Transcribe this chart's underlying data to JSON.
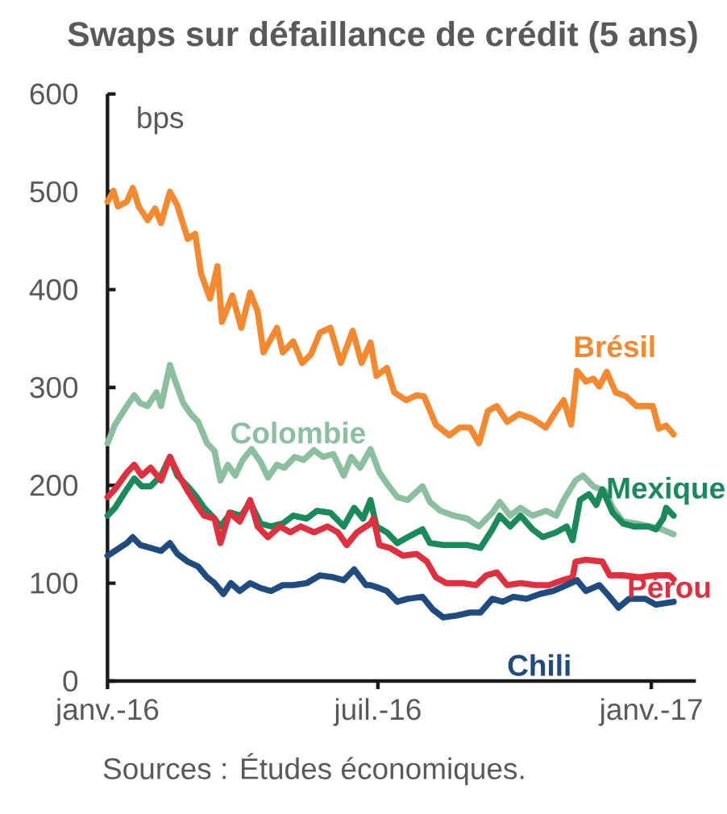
{
  "chart_data": {
    "type": "line",
    "title": "Swaps sur défaillance de crédit (5 ans)",
    "ylabel": "bps",
    "annotations": [
      "Sources : Études économiques."
    ],
    "xlim": [
      "2016-01-01",
      "2017-01-31"
    ],
    "ylim": [
      0,
      600
    ],
    "xticks": [
      {
        "value": "2016-01-01",
        "label": "janv.-16"
      },
      {
        "value": "2016-07-01",
        "label": "juil.-16"
      },
      {
        "value": "2017-01-01",
        "label": "janv.-17"
      }
    ],
    "yticks": [
      0,
      100,
      200,
      300,
      400,
      500,
      600
    ],
    "series": [
      {
        "name": "Brésil",
        "color": "#f5892f",
        "x": [
          "2016-01-01",
          "2016-01-03",
          "2016-01-05",
          "2016-01-08",
          "2016-01-14",
          "2016-01-18",
          "2016-01-22",
          "2016-01-28",
          "2016-02-02",
          "2016-02-06",
          "2016-02-12",
          "2016-02-17",
          "2016-02-24",
          "2016-02-29",
          "2016-03-04",
          "2016-03-10",
          "2016-03-15",
          "2016-03-18",
          "2016-03-25",
          "2016-03-31",
          "2016-04-06",
          "2016-04-11",
          "2016-04-15",
          "2016-04-24",
          "2016-04-28",
          "2016-05-05",
          "2016-05-11",
          "2016-05-17",
          "2016-05-23",
          "2016-05-30",
          "2016-06-06",
          "2016-06-14",
          "2016-06-20",
          "2016-06-26",
          "2016-06-30",
          "2016-07-07",
          "2016-07-12",
          "2016-07-20",
          "2016-07-27",
          "2016-08-01",
          "2016-08-09",
          "2016-08-18",
          "2016-08-25",
          "2016-09-01",
          "2016-09-07",
          "2016-09-13",
          "2016-09-19",
          "2016-09-26",
          "2016-10-04",
          "2016-10-13",
          "2016-10-22",
          "2016-10-29",
          "2016-11-03",
          "2016-11-08",
          "2016-11-12",
          "2016-11-18",
          "2016-11-23",
          "2016-11-27",
          "2016-12-02",
          "2016-12-08",
          "2016-12-15",
          "2016-12-22",
          "2017-01-02",
          "2017-01-06",
          "2017-01-11",
          "2017-01-16"
        ],
        "values": [
          490,
          495,
          501,
          485,
          490,
          504,
          485,
          471,
          483,
          468,
          500,
          486,
          452,
          457,
          416,
          391,
          424,
          367,
          394,
          361,
          397,
          378,
          336,
          361,
          336,
          347,
          325,
          334,
          356,
          361,
          325,
          358,
          325,
          346,
          312,
          320,
          295,
          287,
          292,
          291,
          262,
          251,
          259,
          259,
          243,
          276,
          281,
          265,
          273,
          268,
          259,
          276,
          287,
          262,
          317,
          306,
          309,
          301,
          316,
          295,
          291,
          281,
          281,
          258,
          261,
          252
        ]
      },
      {
        "name": "Colombie",
        "color": "#8bbf9f",
        "x": [
          "2016-01-01",
          "2016-01-06",
          "2016-01-14",
          "2016-01-19",
          "2016-01-23",
          "2016-01-28",
          "2016-02-03",
          "2016-02-06",
          "2016-02-12",
          "2016-02-15",
          "2016-02-21",
          "2016-02-26",
          "2016-03-02",
          "2016-03-08",
          "2016-03-13",
          "2016-03-17",
          "2016-03-22",
          "2016-03-27",
          "2016-04-01",
          "2016-04-07",
          "2016-04-13",
          "2016-04-18",
          "2016-04-24",
          "2016-04-29",
          "2016-05-06",
          "2016-05-12",
          "2016-05-19",
          "2016-05-25",
          "2016-06-01",
          "2016-06-08",
          "2016-06-13",
          "2016-06-19",
          "2016-06-26",
          "2016-07-02",
          "2016-07-07",
          "2016-07-14",
          "2016-07-21",
          "2016-07-31",
          "2016-08-05",
          "2016-08-12",
          "2016-08-21",
          "2016-08-30",
          "2016-09-07",
          "2016-09-16",
          "2016-09-21",
          "2016-09-28",
          "2016-10-05",
          "2016-10-13",
          "2016-10-22",
          "2016-10-29",
          "2016-11-03",
          "2016-11-11",
          "2016-11-16",
          "2016-11-23",
          "2016-12-01",
          "2016-12-06",
          "2016-12-13",
          "2016-12-22",
          "2016-12-31",
          "2017-01-08",
          "2017-01-16"
        ],
        "values": [
          243,
          262,
          281,
          292,
          284,
          281,
          295,
          281,
          323,
          309,
          284,
          273,
          265,
          243,
          235,
          205,
          221,
          210,
          226,
          237,
          224,
          208,
          221,
          218,
          229,
          226,
          236,
          229,
          232,
          210,
          229,
          218,
          237,
          213,
          202,
          188,
          185,
          199,
          183,
          174,
          169,
          166,
          158,
          172,
          183,
          169,
          177,
          169,
          174,
          169,
          185,
          205,
          210,
          199,
          194,
          177,
          163,
          161,
          158,
          155,
          150
        ]
      },
      {
        "name": "Mexique",
        "color": "#1b8a5a",
        "x": [
          "2016-01-01",
          "2016-01-06",
          "2016-01-14",
          "2016-01-19",
          "2016-01-24",
          "2016-01-30",
          "2016-02-06",
          "2016-02-12",
          "2016-02-17",
          "2016-02-24",
          "2016-03-01",
          "2016-03-06",
          "2016-03-13",
          "2016-03-17",
          "2016-03-24",
          "2016-03-31",
          "2016-04-06",
          "2016-04-13",
          "2016-04-20",
          "2016-04-28",
          "2016-05-05",
          "2016-05-14",
          "2016-05-21",
          "2016-05-30",
          "2016-06-08",
          "2016-06-15",
          "2016-06-21",
          "2016-06-26",
          "2016-06-30",
          "2016-07-07",
          "2016-07-14",
          "2016-07-21",
          "2016-07-31",
          "2016-08-05",
          "2016-08-14",
          "2016-08-23",
          "2016-08-30",
          "2016-09-08",
          "2016-09-16",
          "2016-09-21",
          "2016-09-28",
          "2016-10-05",
          "2016-10-13",
          "2016-10-20",
          "2016-10-29",
          "2016-11-05",
          "2016-11-09",
          "2016-11-14",
          "2016-11-20",
          "2016-11-25",
          "2016-11-29",
          "2016-12-06",
          "2016-12-13",
          "2016-12-20",
          "2016-12-30",
          "2017-01-04",
          "2017-01-09",
          "2017-01-11",
          "2017-01-16"
        ],
        "values": [
          169,
          177,
          196,
          207,
          199,
          199,
          210,
          229,
          210,
          199,
          188,
          177,
          166,
          158,
          172,
          169,
          183,
          161,
          158,
          161,
          169,
          166,
          174,
          172,
          158,
          177,
          166,
          185,
          158,
          152,
          141,
          147,
          155,
          141,
          139,
          139,
          139,
          136,
          155,
          169,
          158,
          169,
          155,
          147,
          152,
          158,
          144,
          185,
          191,
          180,
          196,
          172,
          161,
          158,
          158,
          155,
          166,
          177,
          169
        ]
      },
      {
        "name": "Pérou",
        "color": "#e0303f",
        "x": [
          "2016-01-01",
          "2016-01-06",
          "2016-01-14",
          "2016-01-19",
          "2016-01-24",
          "2016-01-30",
          "2016-02-06",
          "2016-02-12",
          "2016-02-17",
          "2016-02-24",
          "2016-03-01",
          "2016-03-06",
          "2016-03-13",
          "2016-03-17",
          "2016-03-23",
          "2016-03-30",
          "2016-04-06",
          "2016-04-11",
          "2016-04-18",
          "2016-04-26",
          "2016-05-03",
          "2016-05-10",
          "2016-05-19",
          "2016-05-28",
          "2016-06-04",
          "2016-06-10",
          "2016-06-17",
          "2016-06-26",
          "2016-06-28",
          "2016-07-02",
          "2016-07-09",
          "2016-07-18",
          "2016-07-27",
          "2016-08-03",
          "2016-08-09",
          "2016-08-16",
          "2016-08-27",
          "2016-09-05",
          "2016-09-12",
          "2016-09-19",
          "2016-09-26",
          "2016-10-05",
          "2016-10-15",
          "2016-10-24",
          "2016-11-02",
          "2016-11-09",
          "2016-11-11",
          "2016-11-18",
          "2016-11-29",
          "2016-12-04",
          "2016-12-13",
          "2016-12-24",
          "2017-01-04",
          "2017-01-13",
          "2017-01-16"
        ],
        "values": [
          188,
          196,
          213,
          221,
          210,
          218,
          205,
          229,
          213,
          194,
          180,
          169,
          166,
          141,
          172,
          163,
          185,
          158,
          147,
          158,
          152,
          158,
          152,
          158,
          152,
          139,
          152,
          161,
          166,
          139,
          136,
          128,
          130,
          122,
          106,
          100,
          100,
          98,
          108,
          111,
          98,
          100,
          98,
          98,
          103,
          106,
          122,
          124,
          122,
          108,
          108,
          106,
          108,
          108,
          104
        ]
      },
      {
        "name": "Chili",
        "color": "#1f4b7f",
        "x": [
          "2016-01-01",
          "2016-01-06",
          "2016-01-14",
          "2016-01-18",
          "2016-01-23",
          "2016-01-30",
          "2016-02-06",
          "2016-02-12",
          "2016-02-17",
          "2016-02-24",
          "2016-03-02",
          "2016-03-08",
          "2016-03-13",
          "2016-03-19",
          "2016-03-24",
          "2016-03-30",
          "2016-04-06",
          "2016-04-13",
          "2016-04-20",
          "2016-04-28",
          "2016-05-05",
          "2016-05-14",
          "2016-05-23",
          "2016-06-01",
          "2016-06-08",
          "2016-06-15",
          "2016-06-23",
          "2016-06-26",
          "2016-07-02",
          "2016-07-07",
          "2016-07-14",
          "2016-07-21",
          "2016-07-31",
          "2016-08-07",
          "2016-08-14",
          "2016-08-23",
          "2016-09-01",
          "2016-09-08",
          "2016-09-16",
          "2016-09-23",
          "2016-09-30",
          "2016-10-09",
          "2016-10-18",
          "2016-10-27",
          "2016-11-05",
          "2016-11-12",
          "2016-11-18",
          "2016-11-27",
          "2016-12-04",
          "2016-12-10",
          "2016-12-17",
          "2016-12-28",
          "2017-01-04",
          "2017-01-16"
        ],
        "values": [
          128,
          133,
          141,
          147,
          139,
          136,
          133,
          141,
          130,
          122,
          117,
          106,
          100,
          89,
          100,
          92,
          100,
          95,
          92,
          98,
          98,
          100,
          108,
          106,
          103,
          114,
          98,
          98,
          95,
          92,
          81,
          84,
          86,
          73,
          65,
          67,
          70,
          70,
          84,
          81,
          86,
          84,
          89,
          92,
          98,
          103,
          92,
          98,
          86,
          75,
          84,
          84,
          78,
          81
        ]
      }
    ]
  }
}
